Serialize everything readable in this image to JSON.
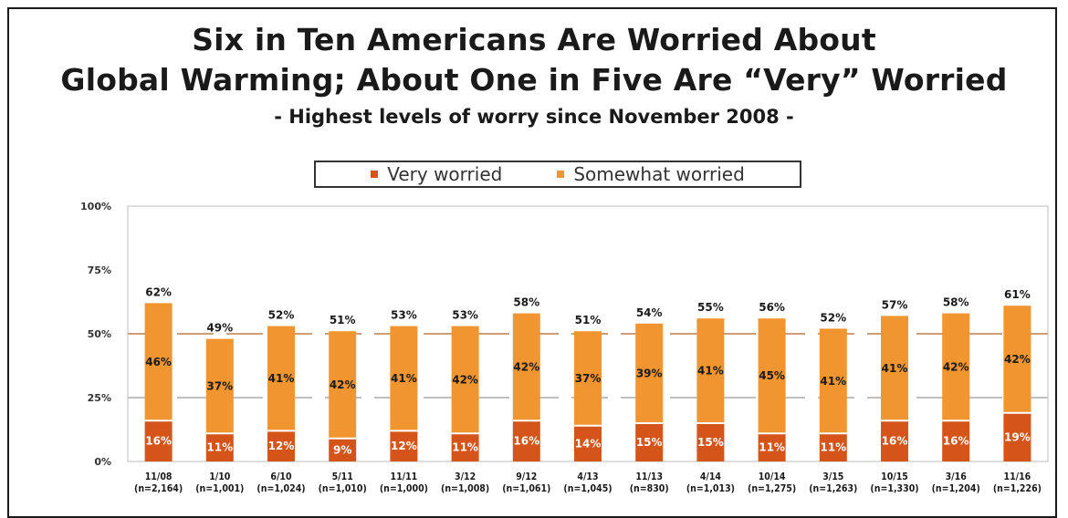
{
  "chart_data": {
    "type": "bar",
    "stacked": true,
    "title_line1": "Six in Ten Americans Are Worried About",
    "title_line2": "Global Warming; About One in Five Are “Very” Worried",
    "subtitle": "- Highest levels of worry since November 2008 -",
    "xlabel": "",
    "ylabel": "",
    "ylim": [
      0,
      100
    ],
    "yticks": [
      "0%",
      "25%",
      "50%",
      "75%",
      "100%"
    ],
    "legend_position": "top-center",
    "categories": [
      "11/08",
      "1/10",
      "6/10",
      "5/11",
      "11/11",
      "3/12",
      "9/12",
      "4/13",
      "11/13",
      "4/14",
      "10/14",
      "3/15",
      "10/15",
      "3/16",
      "11/16"
    ],
    "sample_sizes": [
      "(n=2,164)",
      "(n=1,001)",
      "(n=1,024)",
      "(n=1,010)",
      "(n=1,000)",
      "(n=1,008)",
      "(n=1,061)",
      "(n=1,045)",
      "(n=830)",
      "(n=1,013)",
      "(n=1,275)",
      "(n=1,263)",
      "(n=1,330)",
      "(n=1,204)",
      "(n=1,226)"
    ],
    "series": [
      {
        "name": "Very worried",
        "color": "#d4541a",
        "values": [
          16,
          11,
          12,
          9,
          12,
          11,
          16,
          14,
          15,
          15,
          11,
          11,
          16,
          16,
          19
        ]
      },
      {
        "name": "Somewhat worried",
        "color": "#f0952f",
        "values": [
          46,
          37,
          41,
          42,
          41,
          42,
          42,
          37,
          39,
          41,
          45,
          41,
          41,
          42,
          42
        ]
      }
    ],
    "totals": [
      62,
      49,
      52,
      51,
      53,
      53,
      58,
      51,
      54,
      55,
      56,
      52,
      57,
      58,
      61
    ],
    "gridline_colors": {
      "major": "#c9a07a",
      "minor": "#bfbfbf"
    }
  }
}
